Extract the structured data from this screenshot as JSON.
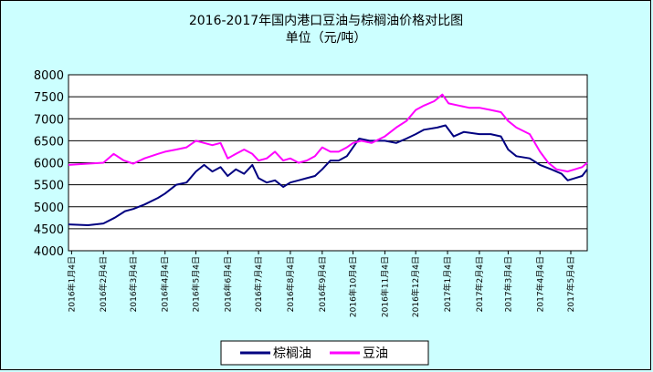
{
  "chart_data": {
    "type": "line",
    "title": "2016-2017年国内港口豆油与棕榈油价格对比图",
    "subtitle": "单位（元/吨）",
    "xlabel": "",
    "ylabel": "",
    "ylim": [
      4000,
      8000
    ],
    "yticks": [
      4000,
      4500,
      5000,
      5500,
      6000,
      6500,
      7000,
      7500,
      8000
    ],
    "grid": true,
    "legend_position": "bottom",
    "x_tick_labels": [
      "2016年1月4日",
      "2016年2月4日",
      "2016年3月4日",
      "2016年4月4日",
      "2016年5月4日",
      "2016年6月4日",
      "2016年7月4日",
      "2016年8月4日",
      "2016年9月4日",
      "2016年10月4日",
      "2016年11月4日",
      "2016年12月4日",
      "2017年1月4日",
      "2017年2月4日",
      "2017年3月4日",
      "2017年4月4日",
      "2017年5月4日"
    ],
    "x_start": "2016-01-01",
    "x_end": "2017-05-20",
    "series": [
      {
        "name": "棕榈油",
        "color": "#000080",
        "points": [
          [
            "2016-01-01",
            4600
          ],
          [
            "2016-01-20",
            4580
          ],
          [
            "2016-02-04",
            4620
          ],
          [
            "2016-02-15",
            4750
          ],
          [
            "2016-02-25",
            4900
          ],
          [
            "2016-03-04",
            4950
          ],
          [
            "2016-03-15",
            5050
          ],
          [
            "2016-03-28",
            5200
          ],
          [
            "2016-04-04",
            5300
          ],
          [
            "2016-04-15",
            5500
          ],
          [
            "2016-04-25",
            5550
          ],
          [
            "2016-05-04",
            5800
          ],
          [
            "2016-05-12",
            5950
          ],
          [
            "2016-05-20",
            5800
          ],
          [
            "2016-05-28",
            5900
          ],
          [
            "2016-06-04",
            5700
          ],
          [
            "2016-06-12",
            5850
          ],
          [
            "2016-06-20",
            5750
          ],
          [
            "2016-06-28",
            5950
          ],
          [
            "2016-07-04",
            5650
          ],
          [
            "2016-07-12",
            5550
          ],
          [
            "2016-07-20",
            5600
          ],
          [
            "2016-07-28",
            5450
          ],
          [
            "2016-08-04",
            5550
          ],
          [
            "2016-08-12",
            5600
          ],
          [
            "2016-08-20",
            5650
          ],
          [
            "2016-08-28",
            5700
          ],
          [
            "2016-09-04",
            5850
          ],
          [
            "2016-09-12",
            6050
          ],
          [
            "2016-09-20",
            6050
          ],
          [
            "2016-09-28",
            6150
          ],
          [
            "2016-10-04",
            6350
          ],
          [
            "2016-10-10",
            6550
          ],
          [
            "2016-10-20",
            6500
          ],
          [
            "2016-11-04",
            6500
          ],
          [
            "2016-11-15",
            6450
          ],
          [
            "2016-11-25",
            6550
          ],
          [
            "2016-12-04",
            6650
          ],
          [
            "2016-12-12",
            6750
          ],
          [
            "2016-12-25",
            6800
          ],
          [
            "2017-01-02",
            6850
          ],
          [
            "2017-01-10",
            6600
          ],
          [
            "2017-01-20",
            6700
          ],
          [
            "2017-02-04",
            6650
          ],
          [
            "2017-02-15",
            6650
          ],
          [
            "2017-02-25",
            6600
          ],
          [
            "2017-03-04",
            6300
          ],
          [
            "2017-03-12",
            6150
          ],
          [
            "2017-03-25",
            6100
          ],
          [
            "2017-04-04",
            5950
          ],
          [
            "2017-04-15",
            5850
          ],
          [
            "2017-04-25",
            5750
          ],
          [
            "2017-05-01",
            5600
          ],
          [
            "2017-05-08",
            5650
          ],
          [
            "2017-05-15",
            5700
          ],
          [
            "2017-05-20",
            5850
          ]
        ]
      },
      {
        "name": "豆油",
        "color": "#FF00FF",
        "points": [
          [
            "2016-01-01",
            5950
          ],
          [
            "2016-01-20",
            5980
          ],
          [
            "2016-02-04",
            6000
          ],
          [
            "2016-02-14",
            6200
          ],
          [
            "2016-02-24",
            6050
          ],
          [
            "2016-03-04",
            5980
          ],
          [
            "2016-03-15",
            6100
          ],
          [
            "2016-03-28",
            6200
          ],
          [
            "2016-04-04",
            6250
          ],
          [
            "2016-04-15",
            6300
          ],
          [
            "2016-04-25",
            6350
          ],
          [
            "2016-05-04",
            6500
          ],
          [
            "2016-05-12",
            6450
          ],
          [
            "2016-05-20",
            6400
          ],
          [
            "2016-05-28",
            6450
          ],
          [
            "2016-06-04",
            6100
          ],
          [
            "2016-06-12",
            6200
          ],
          [
            "2016-06-20",
            6300
          ],
          [
            "2016-06-28",
            6200
          ],
          [
            "2016-07-04",
            6050
          ],
          [
            "2016-07-12",
            6100
          ],
          [
            "2016-07-20",
            6250
          ],
          [
            "2016-07-28",
            6050
          ],
          [
            "2016-08-04",
            6100
          ],
          [
            "2016-08-12",
            6000
          ],
          [
            "2016-08-20",
            6050
          ],
          [
            "2016-08-28",
            6150
          ],
          [
            "2016-09-04",
            6350
          ],
          [
            "2016-09-12",
            6250
          ],
          [
            "2016-09-20",
            6250
          ],
          [
            "2016-09-28",
            6350
          ],
          [
            "2016-10-04",
            6450
          ],
          [
            "2016-10-12",
            6500
          ],
          [
            "2016-10-22",
            6450
          ],
          [
            "2016-11-04",
            6600
          ],
          [
            "2016-11-15",
            6800
          ],
          [
            "2016-11-25",
            6950
          ],
          [
            "2016-12-04",
            7200
          ],
          [
            "2016-12-12",
            7300
          ],
          [
            "2016-12-22",
            7400
          ],
          [
            "2016-12-30",
            7550
          ],
          [
            "2017-01-05",
            7350
          ],
          [
            "2017-01-15",
            7300
          ],
          [
            "2017-01-25",
            7250
          ],
          [
            "2017-02-04",
            7250
          ],
          [
            "2017-02-15",
            7200
          ],
          [
            "2017-02-25",
            7150
          ],
          [
            "2017-03-04",
            6950
          ],
          [
            "2017-03-12",
            6800
          ],
          [
            "2017-03-25",
            6650
          ],
          [
            "2017-04-04",
            6250
          ],
          [
            "2017-04-12",
            6000
          ],
          [
            "2017-04-20",
            5850
          ],
          [
            "2017-05-01",
            5800
          ],
          [
            "2017-05-08",
            5850
          ],
          [
            "2017-05-15",
            5900
          ],
          [
            "2017-05-20",
            6000
          ]
        ]
      }
    ]
  }
}
